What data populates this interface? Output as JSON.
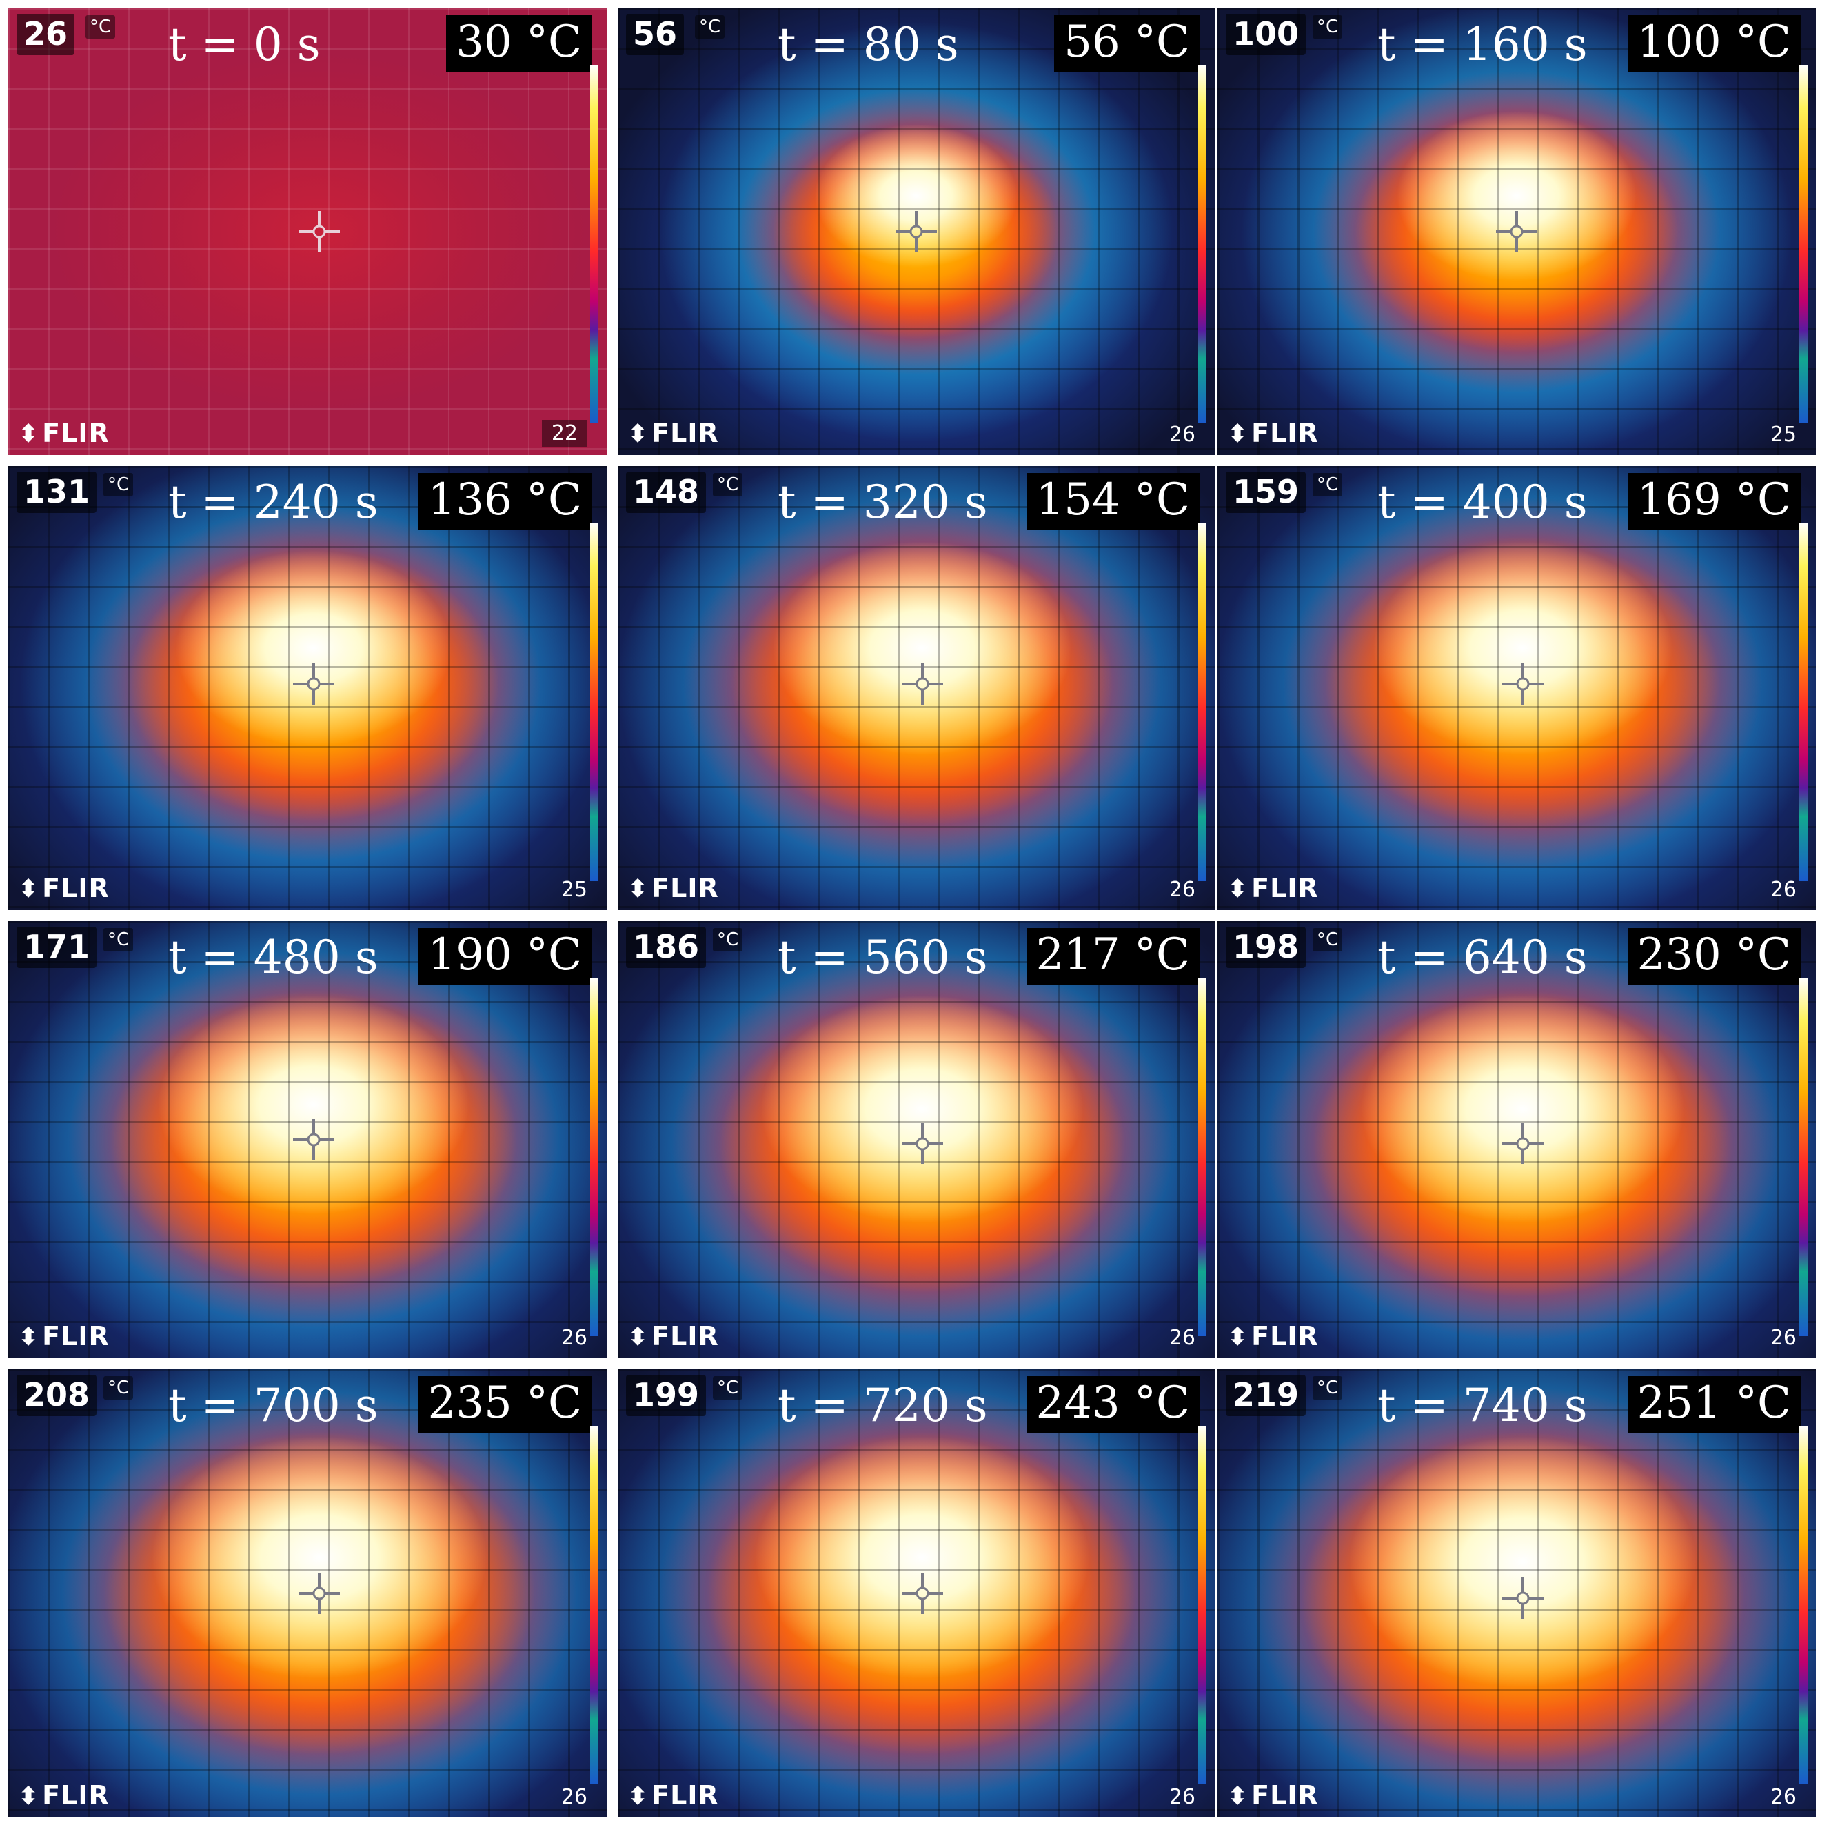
{
  "frames": [
    {
      "spot_reading": "26",
      "spot_unit": "°C",
      "time": "t = 0 s",
      "max_temp": "30 °C",
      "scale_min": "22",
      "logo": "FLIR",
      "heat": 0.0
    },
    {
      "spot_reading": "56",
      "spot_unit": "°C",
      "time": "t = 80 s",
      "max_temp": "56 °C",
      "scale_min": "26",
      "logo": "FLIR",
      "heat": 0.4
    },
    {
      "spot_reading": "100",
      "spot_unit": "°C",
      "time": "t = 160 s",
      "max_temp": "100 °C",
      "scale_min": "25",
      "logo": "FLIR",
      "heat": 0.55
    },
    {
      "spot_reading": "131",
      "spot_unit": "°C",
      "time": "t = 240 s",
      "max_temp": "136 °C",
      "scale_min": "25",
      "logo": "FLIR",
      "heat": 0.7
    },
    {
      "spot_reading": "148",
      "spot_unit": "°C",
      "time": "t = 320 s",
      "max_temp": "154 °C",
      "scale_min": "26",
      "logo": "FLIR",
      "heat": 0.75
    },
    {
      "spot_reading": "159",
      "spot_unit": "°C",
      "time": "t = 400 s",
      "max_temp": "169 °C",
      "scale_min": "26",
      "logo": "FLIR",
      "heat": 0.78
    },
    {
      "spot_reading": "171",
      "spot_unit": "°C",
      "time": "t = 480 s",
      "max_temp": "190 °C",
      "scale_min": "26",
      "logo": "FLIR",
      "heat": 0.82
    },
    {
      "spot_reading": "186",
      "spot_unit": "°C",
      "time": "t = 560 s",
      "max_temp": "217 °C",
      "scale_min": "26",
      "logo": "FLIR",
      "heat": 0.85
    },
    {
      "spot_reading": "198",
      "spot_unit": "°C",
      "time": "t = 640 s",
      "max_temp": "230 °C",
      "scale_min": "26",
      "logo": "FLIR",
      "heat": 0.88
    },
    {
      "spot_reading": "208",
      "spot_unit": "°C",
      "time": "t = 700 s",
      "max_temp": "235 °C",
      "scale_min": "26",
      "logo": "FLIR",
      "heat": 0.9
    },
    {
      "spot_reading": "199",
      "spot_unit": "°C",
      "time": "t = 720 s",
      "max_temp": "243 °C",
      "scale_min": "26",
      "logo": "FLIR",
      "heat": 0.92
    },
    {
      "spot_reading": "219",
      "spot_unit": "°C",
      "time": "t = 740 s",
      "max_temp": "251 °C",
      "scale_min": "26",
      "logo": "FLIR",
      "heat": 0.95
    }
  ]
}
